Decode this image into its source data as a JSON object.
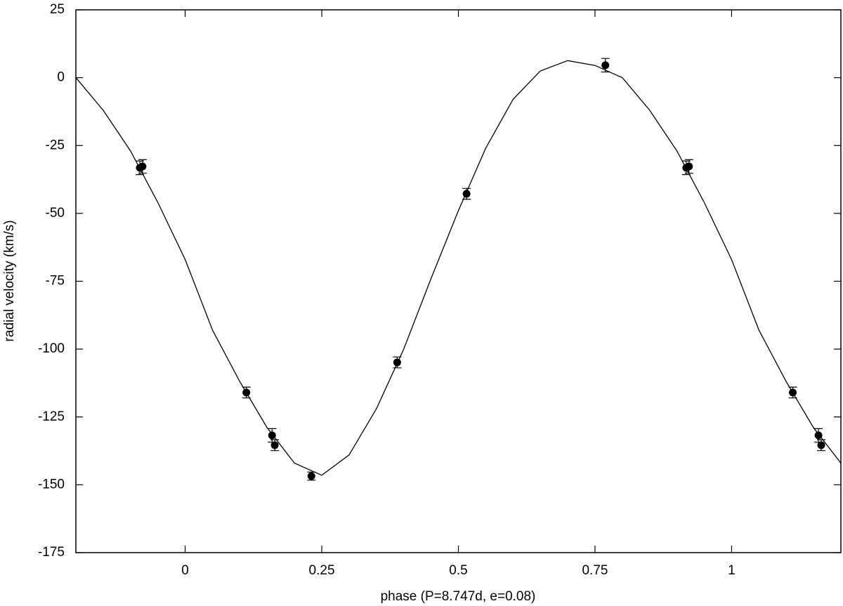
{
  "chart_data": {
    "type": "scatter",
    "xlabel": "phase (P=8.747d, e=0.08)",
    "ylabel": "radial velocity (km/s)",
    "xlim": [
      -0.2,
      1.2
    ],
    "ylim": [
      -175,
      25
    ],
    "xticks": [
      0,
      0.25,
      0.5,
      0.75,
      1
    ],
    "yticks": [
      -175,
      -150,
      -125,
      -100,
      -75,
      -50,
      -25,
      0,
      25
    ],
    "series": [
      {
        "type": "scatter",
        "color": "#000000",
        "x": [
          -0.083,
          -0.078,
          0.112,
          0.159,
          0.164,
          0.231,
          0.388,
          0.515,
          0.769,
          0.917,
          0.922,
          1.112,
          1.159,
          1.164
        ],
        "values": [
          -33.2,
          -32.7,
          -116.0,
          -131.8,
          -135.4,
          -146.8,
          -104.9,
          -42.8,
          4.6,
          -33.2,
          -32.7,
          -116.0,
          -131.8,
          -135.4
        ],
        "errors": [
          2.5,
          2.5,
          2,
          2.5,
          2,
          1.5,
          2,
          2,
          2.5,
          2.5,
          2.5,
          2,
          2.5,
          2
        ]
      },
      {
        "type": "line",
        "color": "#000000",
        "x": [
          -0.2,
          -0.15,
          -0.1,
          -0.05,
          0,
          0.05,
          0.1,
          0.15,
          0.2,
          0.25,
          0.3,
          0.35,
          0.4,
          0.45,
          0.5,
          0.55,
          0.6,
          0.65,
          0.7,
          0.75,
          0.8,
          0.85,
          0.9,
          0.95,
          1.0,
          1.05,
          1.1,
          1.15,
          1.2
        ],
        "values": [
          0,
          -12,
          -27,
          -46,
          -67,
          -93,
          -112,
          -129,
          -142,
          -146.5,
          -139,
          -122,
          -100,
          -74,
          -49,
          -26,
          -8,
          2.5,
          6.3,
          4.5,
          0,
          -12,
          -27,
          -46,
          -67,
          -93,
          -112,
          -129,
          -142
        ]
      }
    ]
  }
}
